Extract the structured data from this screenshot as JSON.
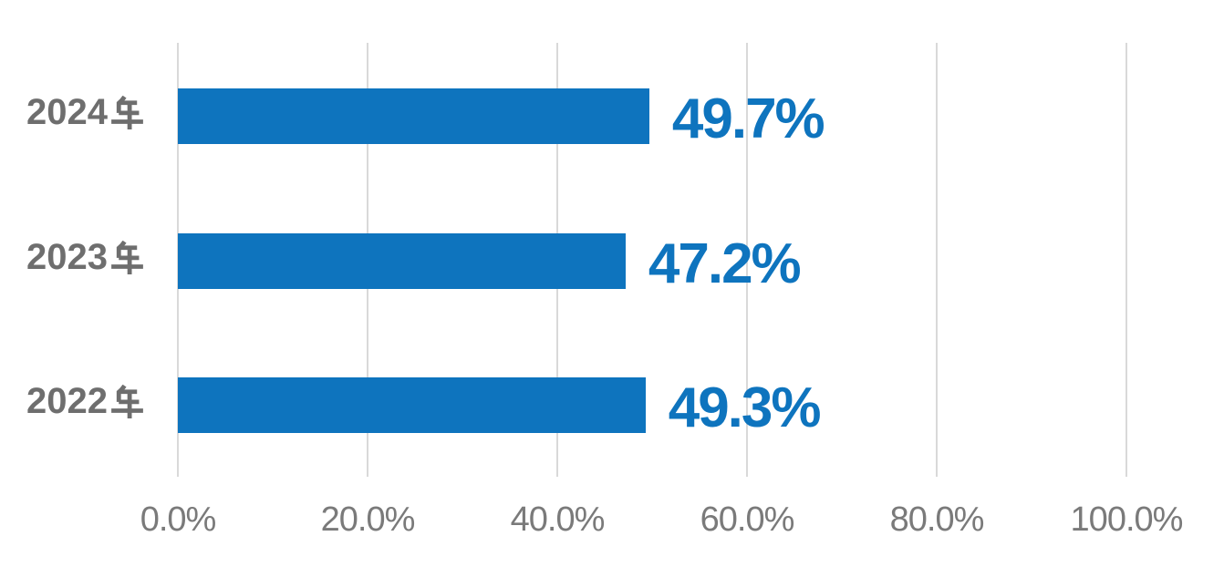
{
  "chart_data": {
    "type": "bar",
    "orientation": "horizontal",
    "categories": [
      "2024年",
      "2023年",
      "2022年"
    ],
    "category_prefixes": [
      "2024",
      "2023",
      "2022"
    ],
    "category_suffix": "年",
    "values": [
      49.7,
      47.2,
      49.3
    ],
    "value_labels": [
      "49.7%",
      "47.2%",
      "49.3%"
    ],
    "xlim": [
      0,
      100
    ],
    "x_ticks": [
      {
        "value": 0,
        "label": "0.0%"
      },
      {
        "value": 20,
        "label": "20.0%"
      },
      {
        "value": 40,
        "label": "40.0%"
      },
      {
        "value": 60,
        "label": "60.0%"
      },
      {
        "value": 80,
        "label": "80.0%"
      },
      {
        "value": 100,
        "label": "100.0%"
      }
    ],
    "grid": true,
    "legend": false,
    "colors": {
      "bar": "#0E74BE",
      "value_label": "#0E74BE",
      "category_label": "#6E6E6E",
      "tick_label": "#7A7A7A",
      "gridline": "#D9D9D9",
      "background": "#FFFFFF"
    }
  }
}
